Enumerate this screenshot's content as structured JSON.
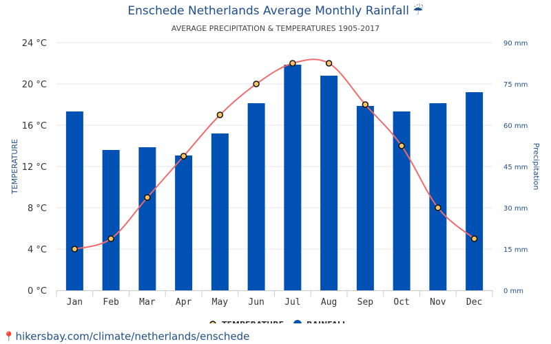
{
  "header": {
    "title": "Enschede Netherlands Average Monthly Rainfall",
    "title_icon": "umbrella-rain-icon",
    "subtitle": "AVERAGE PRECIPITATION & TEMPERATURES 1905-2017"
  },
  "source_link": "hikersbay.com/climate/netherlands/enschede",
  "colors": {
    "bar": "#0051b3",
    "temperature_line": "#f06b6b",
    "marker_fill": "#f5c264",
    "title": "#1f4e8c"
  },
  "chart_data": {
    "type": "bar",
    "title": "Enschede Netherlands Average Monthly Rainfall",
    "subtitle": "AVERAGE PRECIPITATION & TEMPERATURES 1905-2017",
    "categories": [
      "Jan",
      "Feb",
      "Mar",
      "Apr",
      "May",
      "Jun",
      "Jul",
      "Aug",
      "Sep",
      "Oct",
      "Nov",
      "Dec"
    ],
    "series": [
      {
        "name": "TEMPERATURE",
        "type": "line",
        "axis": "left",
        "unit": "°C",
        "values": [
          4,
          5,
          9,
          13,
          17,
          20,
          22,
          22,
          18,
          14,
          8,
          5
        ]
      },
      {
        "name": "RAINFALL",
        "type": "bar",
        "axis": "right",
        "unit": "mm",
        "values": [
          65,
          51,
          52,
          49,
          57,
          68,
          82,
          78,
          67,
          65,
          68,
          72
        ]
      }
    ],
    "ylabel": "TEMPERATURE",
    "y2label": "Precipitation",
    "ylim": [
      0,
      24
    ],
    "y2lim": [
      0,
      90
    ],
    "yticks": [
      "0 °C",
      "4 °C",
      "8 °C",
      "12 °C",
      "16 °C",
      "20 °C",
      "24 °C"
    ],
    "y2ticks": [
      "0 mm",
      "15 mm",
      "30 mm",
      "45 mm",
      "60 mm",
      "75 mm",
      "90 mm"
    ],
    "grid": true,
    "legend": {
      "position": "bottom-center",
      "items": [
        "TEMPERATURE",
        "RAINFALL"
      ]
    }
  }
}
